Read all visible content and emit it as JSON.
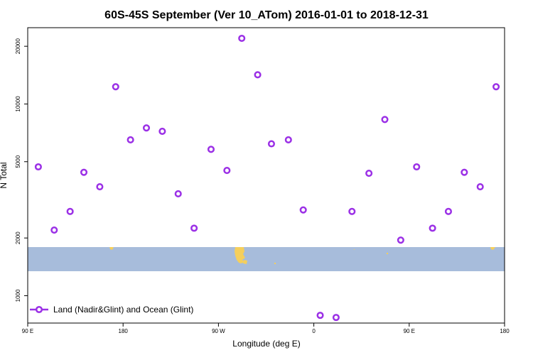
{
  "chart_data": {
    "type": "scatter",
    "title": "60S-45S September (Ver 10_ATom)   2016-01-01 to 2018-12-31",
    "xlabel": "Longitude (deg E)",
    "ylabel": "N Total",
    "y_scale": "log",
    "ylim": [
      720,
      25000
    ],
    "x_ticks": [
      {
        "value": 90,
        "label": "90 E"
      },
      {
        "value": 180,
        "label": "180"
      },
      {
        "value": 270,
        "label": "90 W"
      },
      {
        "value": 360,
        "label": "0"
      },
      {
        "value": 450,
        "label": "90 E"
      },
      {
        "value": 540,
        "label": "180"
      }
    ],
    "xlim": [
      90,
      540
    ],
    "y_ticks": [
      1000,
      2000,
      5000,
      10000,
      20000
    ],
    "legend": {
      "placement": "bottom-left",
      "label": "Land (Nadir&Glint) and Ocean (Glint)"
    },
    "colors": {
      "points": "#9b30e6",
      "band": "#a7bcdb",
      "land": "#f5cf5c"
    },
    "series": [
      {
        "x": [
          100,
          115,
          130,
          143,
          158,
          173,
          187,
          202,
          217,
          232,
          247,
          263,
          278,
          292,
          307,
          320,
          336,
          350,
          366,
          381,
          396,
          412,
          427,
          442,
          457,
          472,
          487,
          502,
          517,
          532
        ],
        "y": [
          4700,
          2200,
          2750,
          4400,
          3700,
          12300,
          6500,
          7500,
          7200,
          3400,
          2250,
          5800,
          4500,
          22000,
          14200,
          6200,
          6500,
          2800,
          790,
          770,
          2750,
          4350,
          8300,
          1950,
          4700,
          2250,
          2750,
          4400,
          3700,
          12300
        ]
      }
    ]
  }
}
